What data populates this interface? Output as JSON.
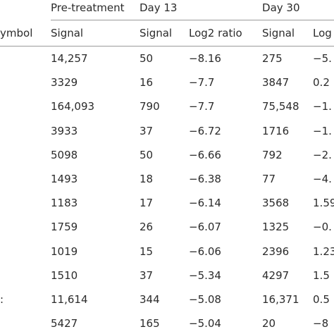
{
  "header": {
    "groups": [
      "Pre-treatment",
      "Day 13",
      "Day 30"
    ],
    "columns": [
      "ymbol",
      "Signal",
      "Signal",
      "Log2 ratio",
      "Signal",
      "Log"
    ]
  },
  "rows": [
    {
      "symbol": "",
      "pre": "14,257",
      "d13_signal": "50",
      "d13_ratio": "−8.16",
      "d30_signal": "275",
      "d30_ratio": "−5."
    },
    {
      "symbol": "",
      "pre": "3329",
      "d13_signal": "16",
      "d13_ratio": "−7.7",
      "d30_signal": "3847",
      "d30_ratio": "0.2"
    },
    {
      "symbol": "",
      "pre": "164,093",
      "d13_signal": "790",
      "d13_ratio": "−7.7",
      "d30_signal": "75,548",
      "d30_ratio": "−1."
    },
    {
      "symbol": "",
      "pre": "3933",
      "d13_signal": "37",
      "d13_ratio": "−6.72",
      "d30_signal": "1716",
      "d30_ratio": "−1."
    },
    {
      "symbol": "",
      "pre": "5098",
      "d13_signal": "50",
      "d13_ratio": "−6.66",
      "d30_signal": "792",
      "d30_ratio": "−2."
    },
    {
      "symbol": "",
      "pre": "1493",
      "d13_signal": "18",
      "d13_ratio": "−6.38",
      "d30_signal": "77",
      "d30_ratio": "−4."
    },
    {
      "symbol": "",
      "pre": "1183",
      "d13_signal": "17",
      "d13_ratio": "−6.14",
      "d30_signal": "3568",
      "d30_ratio": "1.59"
    },
    {
      "symbol": "",
      "pre": "1759",
      "d13_signal": "26",
      "d13_ratio": "−6.07",
      "d30_signal": "1325",
      "d30_ratio": "−0."
    },
    {
      "symbol": "",
      "pre": "1019",
      "d13_signal": "15",
      "d13_ratio": "−6.06",
      "d30_signal": "2396",
      "d30_ratio": "1.23"
    },
    {
      "symbol": "",
      "pre": "1510",
      "d13_signal": "37",
      "d13_ratio": "−5.34",
      "d30_signal": "4297",
      "d30_ratio": "1.5"
    },
    {
      "symbol": ":",
      "pre": "11,614",
      "d13_signal": "344",
      "d13_ratio": "−5.08",
      "d30_signal": "16,371",
      "d30_ratio": "0.5"
    },
    {
      "symbol": "",
      "pre": "5427",
      "d13_signal": "165",
      "d13_ratio": "−5.04",
      "d30_signal": "20",
      "d30_ratio": "−8"
    }
  ]
}
